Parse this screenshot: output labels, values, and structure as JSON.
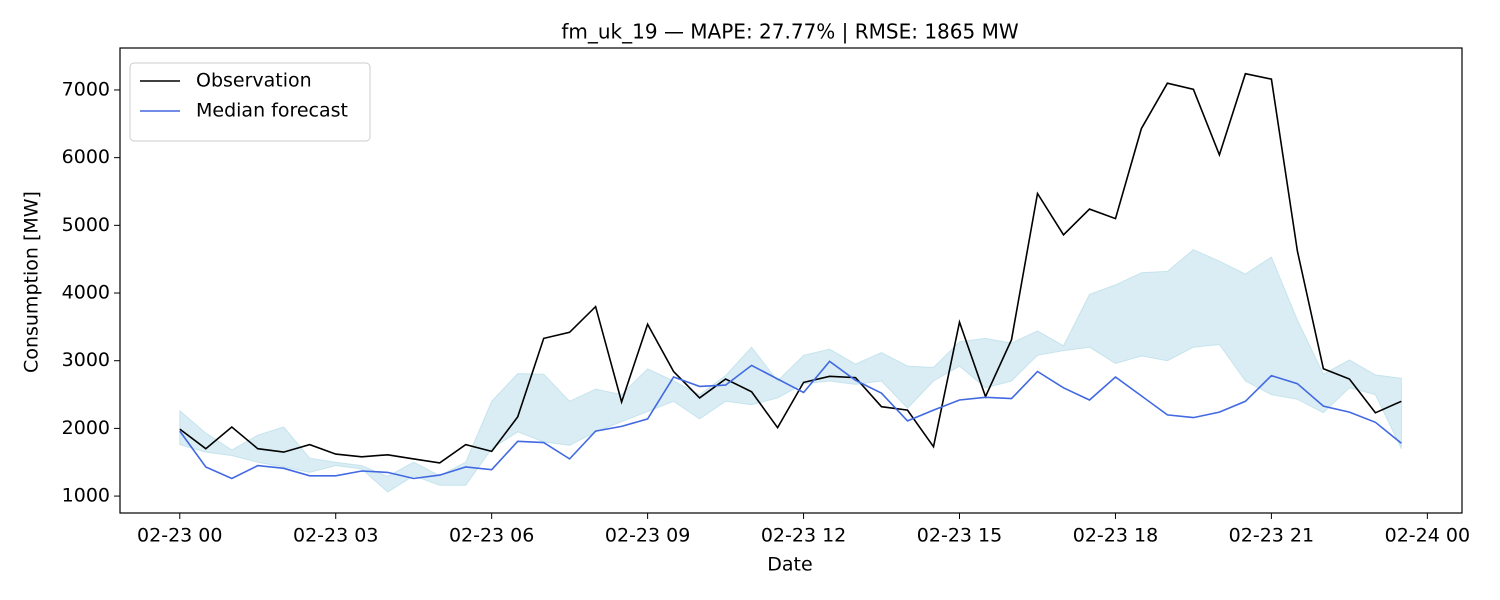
{
  "chart_data": {
    "type": "line",
    "title": "fm_uk_19 — MAPE: 27.77% | RMSE: 1865 MW",
    "xlabel": "Date",
    "ylabel": "Consumption [MW]",
    "x": [
      "02-23 00:00",
      "02-23 00:30",
      "02-23 01:00",
      "02-23 01:30",
      "02-23 02:00",
      "02-23 02:30",
      "02-23 03:00",
      "02-23 03:30",
      "02-23 04:00",
      "02-23 04:30",
      "02-23 05:00",
      "02-23 05:30",
      "02-23 06:00",
      "02-23 06:30",
      "02-23 07:00",
      "02-23 07:30",
      "02-23 08:00",
      "02-23 08:30",
      "02-23 09:00",
      "02-23 09:30",
      "02-23 10:00",
      "02-23 10:30",
      "02-23 11:00",
      "02-23 11:30",
      "02-23 12:00",
      "02-23 12:30",
      "02-23 13:00",
      "02-23 13:30",
      "02-23 14:00",
      "02-23 14:30",
      "02-23 15:00",
      "02-23 15:30",
      "02-23 16:00",
      "02-23 16:30",
      "02-23 17:00",
      "02-23 17:30",
      "02-23 18:00",
      "02-23 18:30",
      "02-23 19:00",
      "02-23 19:30",
      "02-23 20:00",
      "02-23 20:30",
      "02-23 21:00",
      "02-23 21:30",
      "02-23 22:00",
      "02-23 22:30",
      "02-23 23:00",
      "02-23 23:30"
    ],
    "series": [
      {
        "name": "Observation",
        "color": "#000000",
        "values": [
          1990,
          1700,
          2020,
          1700,
          1650,
          1760,
          1620,
          1580,
          1610,
          1550,
          1490,
          1760,
          1660,
          2170,
          3330,
          3420,
          3800,
          2390,
          3540,
          2840,
          2450,
          2730,
          2540,
          2010,
          2680,
          2770,
          2750,
          2320,
          2270,
          1730,
          3570,
          2470,
          3310,
          5470,
          4860,
          5240,
          5100,
          6430,
          7100,
          7010,
          6040,
          7240,
          7160,
          4620,
          2880,
          2730,
          2230,
          2400
        ]
      },
      {
        "name": "Median forecast",
        "color": "#4169e1",
        "values": [
          1960,
          1430,
          1260,
          1450,
          1410,
          1300,
          1300,
          1370,
          1350,
          1260,
          1310,
          1430,
          1390,
          1810,
          1790,
          1550,
          1960,
          2030,
          2140,
          2760,
          2620,
          2640,
          2930,
          2730,
          2530,
          2990,
          2710,
          2520,
          2110,
          2270,
          2420,
          2460,
          2440,
          2840,
          2600,
          2420,
          2760,
          2480,
          2200,
          2160,
          2240,
          2400,
          2780,
          2660,
          2330,
          2240,
          2090,
          1780
        ]
      }
    ],
    "band": {
      "color": "#add8e6",
      "lower": [
        1760,
        1650,
        1600,
        1500,
        1430,
        1350,
        1450,
        1400,
        1060,
        1300,
        1160,
        1160,
        1700,
        1950,
        1800,
        1750,
        1950,
        2100,
        2250,
        2400,
        2140,
        2400,
        2350,
        2450,
        2660,
        2700,
        2650,
        2700,
        2300,
        2700,
        2920,
        2600,
        2700,
        3080,
        3150,
        3200,
        2960,
        3070,
        3000,
        3200,
        3240,
        2700,
        2500,
        2430,
        2230,
        2600,
        2500,
        1700
      ],
      "upper": [
        2260,
        1930,
        1680,
        1900,
        2020,
        1560,
        1500,
        1450,
        1290,
        1500,
        1300,
        1500,
        2400,
        2810,
        2800,
        2400,
        2580,
        2500,
        2880,
        2700,
        2500,
        2780,
        3200,
        2700,
        3080,
        3170,
        2950,
        3120,
        2920,
        2900,
        3280,
        3330,
        3260,
        3440,
        3220,
        3980,
        4120,
        4300,
        4320,
        4640,
        4470,
        4280,
        4530,
        3600,
        2800,
        3010,
        2790,
        2740
      ]
    },
    "xlim": [
      "02-22 22:51",
      "02-24 00:40"
    ],
    "xticks": [
      {
        "value": "02-23 00:00",
        "label": "02-23 00"
      },
      {
        "value": "02-23 03:00",
        "label": "02-23 03"
      },
      {
        "value": "02-23 06:00",
        "label": "02-23 06"
      },
      {
        "value": "02-23 09:00",
        "label": "02-23 09"
      },
      {
        "value": "02-23 12:00",
        "label": "02-23 12"
      },
      {
        "value": "02-23 15:00",
        "label": "02-23 15"
      },
      {
        "value": "02-23 18:00",
        "label": "02-23 18"
      },
      {
        "value": "02-23 21:00",
        "label": "02-23 21"
      },
      {
        "value": "02-24 00:00",
        "label": "02-24 00"
      }
    ],
    "ylim": [
      750,
      7620
    ],
    "yticks": [
      1000,
      2000,
      3000,
      4000,
      5000,
      6000,
      7000
    ],
    "legend": "upper left"
  }
}
